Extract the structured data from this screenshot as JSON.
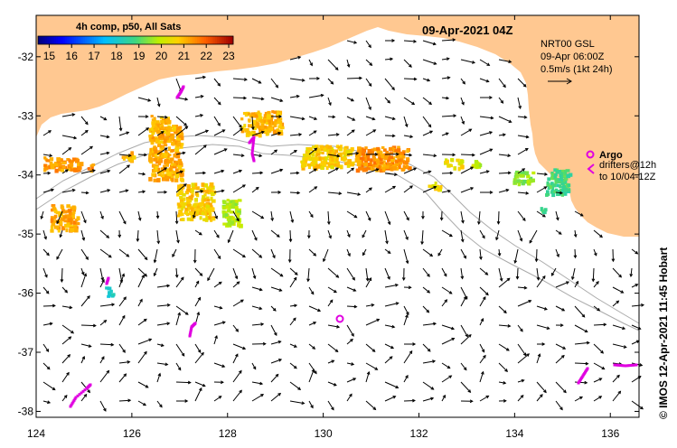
{
  "map": {
    "title": "09-Apr-2021 04Z",
    "lon_ticks": [
      "124",
      "126",
      "128",
      "130",
      "132",
      "134",
      "136"
    ],
    "lat_ticks": [
      "-32",
      "-33",
      "-34",
      "-35",
      "-36",
      "-37",
      "-38"
    ],
    "lon_range": [
      124,
      136.6
    ],
    "lat_range": [
      -38.1,
      -31.3
    ]
  },
  "colorbar": {
    "title": "4h comp, p50, All Sats",
    "ticks": [
      "15",
      "16",
      "17",
      "18",
      "19",
      "20",
      "21",
      "22",
      "23"
    ],
    "range": [
      14.5,
      23.2
    ]
  },
  "info": {
    "line1": "NRT00 GSL",
    "line2": "09-Apr 06:00Z",
    "line3": "0.5m/s (1kt 24h)"
  },
  "legend": {
    "argo_label": "Argo",
    "drifters_label": "drifters@12h",
    "drifters_range": "to 10/04-12Z"
  },
  "credit": "© IMOS 12-Apr-2021 11:45 Hobart",
  "colors": {
    "land": "#ffc891",
    "argo": "#e000e0",
    "isobath": "#aaaaaa",
    "background": "#ffffff"
  }
}
